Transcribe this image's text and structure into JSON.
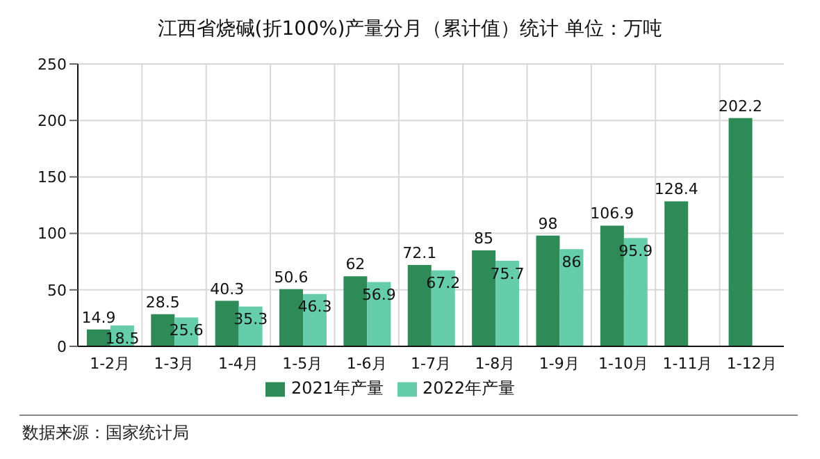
{
  "chart_data": {
    "type": "bar",
    "title": "江西省烧碱(折100%)产量分月（累计值）统计 单位：万吨",
    "categories": [
      "1-2月",
      "1-3月",
      "1-4月",
      "1-5月",
      "1-6月",
      "1-7月",
      "1-8月",
      "1-9月",
      "1-10月",
      "1-11月",
      "1-12月"
    ],
    "series": [
      {
        "name": "2021年产量",
        "color": "#2e8b57",
        "values": [
          14.9,
          28.5,
          40.3,
          50.6,
          62,
          72.1,
          85,
          98,
          106.9,
          128.4,
          202.2
        ]
      },
      {
        "name": "2022年产量",
        "color": "#66cdaa",
        "values": [
          18.5,
          25.6,
          35.3,
          46.3,
          56.9,
          67.2,
          75.7,
          86,
          95.9,
          null,
          null
        ]
      }
    ],
    "ylim": [
      0,
      250
    ],
    "yticks": [
      0,
      50,
      100,
      150,
      200,
      250
    ],
    "grid": true,
    "legend": "bottom",
    "data_labels": true,
    "annotations": [
      "数据来源：国家统计局"
    ]
  }
}
